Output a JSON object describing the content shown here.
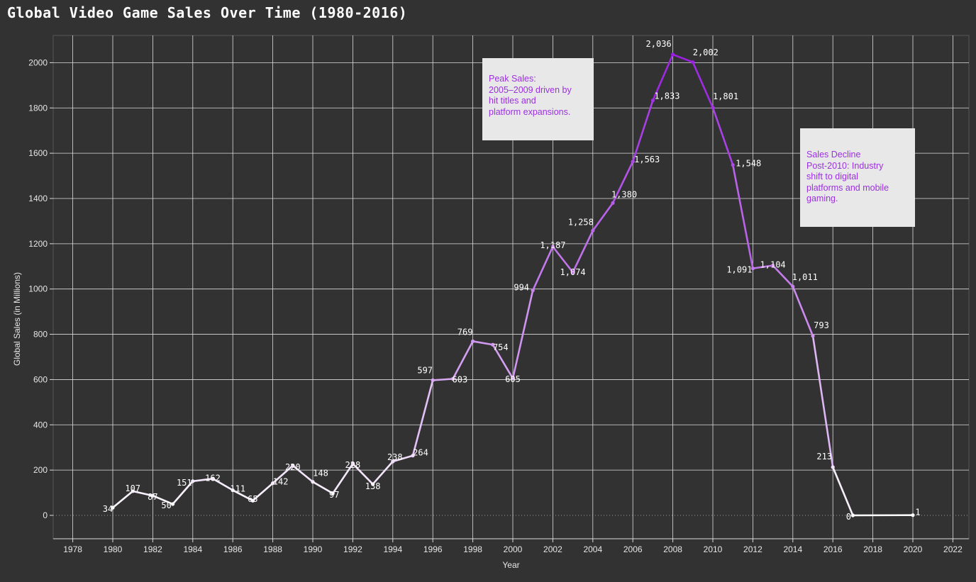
{
  "chart_data": {
    "type": "line",
    "title": "Global Video Game Sales Over Time (1980-2016)",
    "xlabel": "Year",
    "ylabel": "Global Sales (in Millions)",
    "xlim": [
      1977,
      2023
    ],
    "ylim": [
      -110,
      2130
    ],
    "grid": true,
    "x_ticks": [
      1978,
      1980,
      1982,
      1984,
      1986,
      1988,
      1990,
      1992,
      1994,
      1996,
      1998,
      2000,
      2002,
      2004,
      2006,
      2008,
      2010,
      2012,
      2014,
      2016,
      2018,
      2020,
      2022
    ],
    "y_ticks": [
      0,
      200,
      400,
      600,
      800,
      1000,
      1200,
      1400,
      1600,
      1800,
      2000
    ],
    "series": [
      {
        "x": [
          1980,
          1981,
          1982,
          1983,
          1984,
          1985,
          1986,
          1987,
          1988,
          1989,
          1990,
          1991,
          1992,
          1993,
          1994,
          1995,
          1996,
          1997,
          1998,
          1999,
          2000,
          2001,
          2002,
          2003,
          2004,
          2005,
          2006,
          2007,
          2008,
          2009,
          2010,
          2011,
          2012,
          2013,
          2014,
          2015,
          2016,
          2017,
          2020
        ],
        "values": [
          34,
          107,
          87,
          50,
          151,
          162,
          111,
          65,
          142,
          220,
          148,
          97,
          228,
          138,
          238,
          264,
          597,
          603,
          769,
          754,
          605,
          994,
          1187,
          1074,
          1258,
          1380,
          1563,
          1833,
          2036,
          2002,
          1801,
          1548,
          1091,
          1104,
          1011,
          793,
          213,
          0,
          1
        ],
        "labels": [
          "34",
          "107",
          "87",
          "50",
          "151",
          "162",
          "111",
          "65",
          "142",
          "220",
          "148",
          "97",
          "228",
          "138",
          "238",
          "264",
          "597",
          "603",
          "769",
          "754",
          "605",
          "994",
          "1,187",
          "1,074",
          "1,258",
          "1,380",
          "1,563",
          "1,833",
          "2,036",
          "2,002",
          "1,801",
          "1,548",
          "1,091",
          "1,104",
          "1,011",
          "793",
          "213",
          "0",
          "1"
        ]
      }
    ],
    "annotations": [
      {
        "text": "Peak Sales:\n2005–2009 driven by\nhit titles and\nplatform expansions."
      },
      {
        "text": "Sales Decline\nPost-2010: Industry\nshift to digital\nplatforms and mobile\ngaming."
      }
    ],
    "colors": {
      "low": "#ffffff",
      "mid": "#d7a6f2",
      "high": "#9a1fe0",
      "background": "#323232",
      "grid": "#dcdcdc",
      "annotation_text": "#9b30e0"
    }
  }
}
